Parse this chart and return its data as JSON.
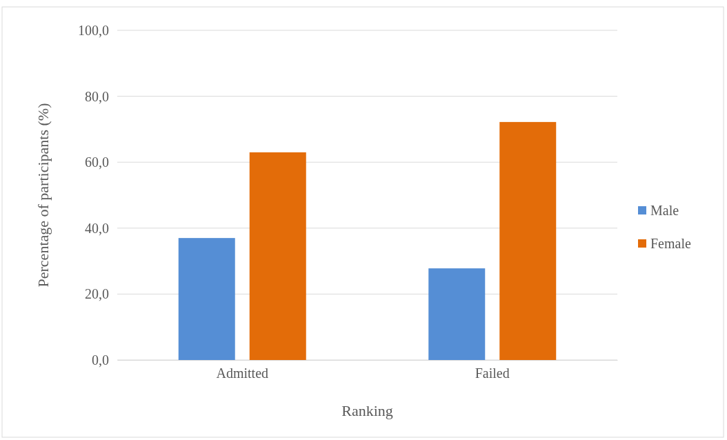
{
  "chart_data": {
    "type": "bar",
    "xlabel": "Ranking",
    "ylabel": "Percentage of participants (%)",
    "categories": [
      "Admitted",
      "Failed"
    ],
    "series": [
      {
        "name": "Male",
        "color": "#558ed5",
        "values": [
          37.0,
          27.8
        ]
      },
      {
        "name": "Female",
        "color": "#e36c09",
        "values": [
          63.0,
          72.2
        ]
      }
    ],
    "ylim": [
      0,
      100
    ],
    "yticks": [
      {
        "value": 0,
        "label": "0,0"
      },
      {
        "value": 20,
        "label": "20,0"
      },
      {
        "value": 40,
        "label": "40,0"
      },
      {
        "value": 60,
        "label": "60,0"
      },
      {
        "value": 80,
        "label": "80,0"
      },
      {
        "value": 100,
        "label": "100,0"
      }
    ],
    "grid": "y",
    "legend": "right"
  }
}
